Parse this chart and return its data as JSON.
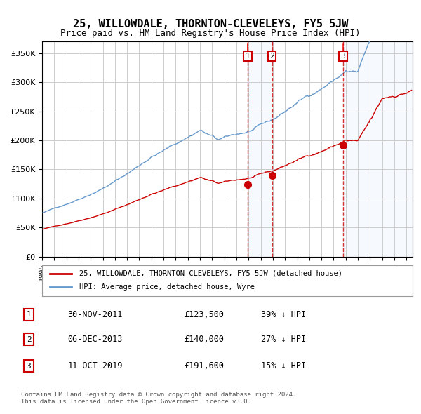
{
  "title": "25, WILLOWDALE, THORNTON-CLEVELEYS, FY5 5JW",
  "subtitle": "Price paid vs. HM Land Registry's House Price Index (HPI)",
  "legend_property": "25, WILLOWDALE, THORNTON-CLEVELEYS, FY5 5JW (detached house)",
  "legend_hpi": "HPI: Average price, detached house, Wyre",
  "footer": "Contains HM Land Registry data © Crown copyright and database right 2024.\nThis data is licensed under the Open Government Licence v3.0.",
  "transactions": [
    {
      "num": 1,
      "date": "30-NOV-2011",
      "price": 123500,
      "pct": "39%",
      "dir": "↓"
    },
    {
      "num": 2,
      "date": "06-DEC-2013",
      "price": 140000,
      "pct": "27%",
      "dir": "↓"
    },
    {
      "num": 3,
      "date": "11-OCT-2019",
      "price": 191600,
      "pct": "15%",
      "dir": "↓"
    }
  ],
  "transaction_dates_decimal": [
    2011.917,
    2013.928,
    2019.781
  ],
  "ylim": [
    0,
    370000
  ],
  "yticks": [
    0,
    50000,
    100000,
    150000,
    200000,
    250000,
    300000,
    350000
  ],
  "xlim_start": 1995.0,
  "xlim_end": 2025.5,
  "property_color": "#cc0000",
  "hpi_color": "#6699cc",
  "shade_color": "#ddeeff",
  "grid_color": "#cccccc",
  "background_color": "#ffffff",
  "shade_between_1_2": [
    2011.917,
    2013.928
  ],
  "shade_after_3": [
    2019.781,
    2025.5
  ]
}
